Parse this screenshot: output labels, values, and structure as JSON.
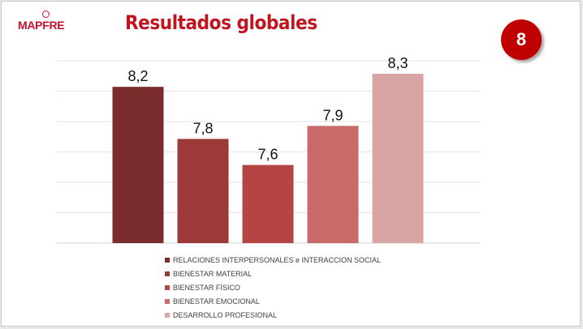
{
  "brand": {
    "logo_text": "MAPFRE",
    "color": "#c8102e"
  },
  "header": {
    "title": "Resultados globales",
    "slide_number": "8"
  },
  "chart_data": {
    "type": "bar",
    "categories": [
      "RELACIONES INTERPERSONALES e INTERACCION SOCIAL",
      "BIENESTAR MATERIAL",
      "BIENESTAR FÍSICO",
      "BIENESTAR EMOCIONAL",
      "DESARROLLO PROFESIONAL"
    ],
    "values": [
      8.2,
      7.8,
      7.6,
      7.9,
      8.3
    ],
    "value_labels": [
      "8,2",
      "7,8",
      "7,6",
      "7,9",
      "8,3"
    ],
    "colors": [
      "#7b2c2c",
      "#9c3a3a",
      "#b54444",
      "#c96a6a",
      "#d8a4a4"
    ],
    "ylim": [
      7.0,
      8.4
    ],
    "grid": true,
    "legend_position": "bottom"
  }
}
